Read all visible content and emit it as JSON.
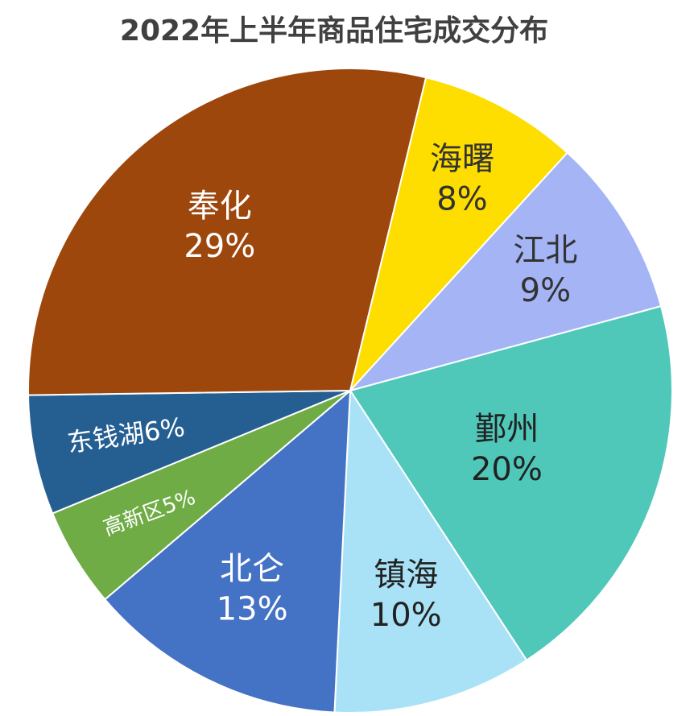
{
  "chart_data": {
    "type": "pie",
    "title": "2022年上半年商品住宅成交分布",
    "categories": [
      "海曙",
      "江北",
      "鄞州",
      "镇海",
      "北仑",
      "高新区",
      "东钱湖",
      "奉化"
    ],
    "values": [
      8,
      9,
      20,
      10,
      13,
      5,
      6,
      29
    ],
    "value_labels": [
      "8%",
      "9%",
      "20%",
      "10%",
      "13%",
      "5%",
      "6%",
      "29%"
    ],
    "colors": [
      "#fedd00",
      "#a4b4f4",
      "#4fc8ba",
      "#a9e2f6",
      "#4472c4",
      "#6fac46",
      "#255e91",
      "#9d470d"
    ]
  }
}
